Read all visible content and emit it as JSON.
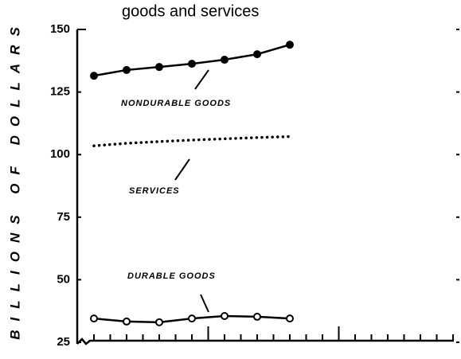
{
  "chart_data": {
    "type": "line",
    "title": "goods and services",
    "y_label": "BILLIONS OF DOLLARS",
    "categories": [
      null,
      null,
      null,
      null,
      null,
      null,
      null
    ],
    "series": [
      {
        "name": "NONDURABLE GOODS",
        "color": "#000000",
        "marker": "filled",
        "values": [
          131.5,
          133.8,
          135,
          136.3,
          137.9,
          140.1,
          143.9
        ]
      },
      {
        "name": "SERVICES",
        "color": "#000000",
        "marker": "dotted",
        "values": [
          103.5,
          104.5,
          105.2,
          105.8,
          106.3,
          106.8,
          107.2
        ]
      },
      {
        "name": "DURABLE GOODS",
        "color": "#000000",
        "marker": "open",
        "values": [
          34.5,
          33.3,
          33,
          34.5,
          35.5,
          35.2,
          34.5
        ]
      }
    ],
    "ylim": [
      25,
      150
    ],
    "yticks": [
      25,
      50,
      75,
      100,
      125,
      150
    ]
  }
}
